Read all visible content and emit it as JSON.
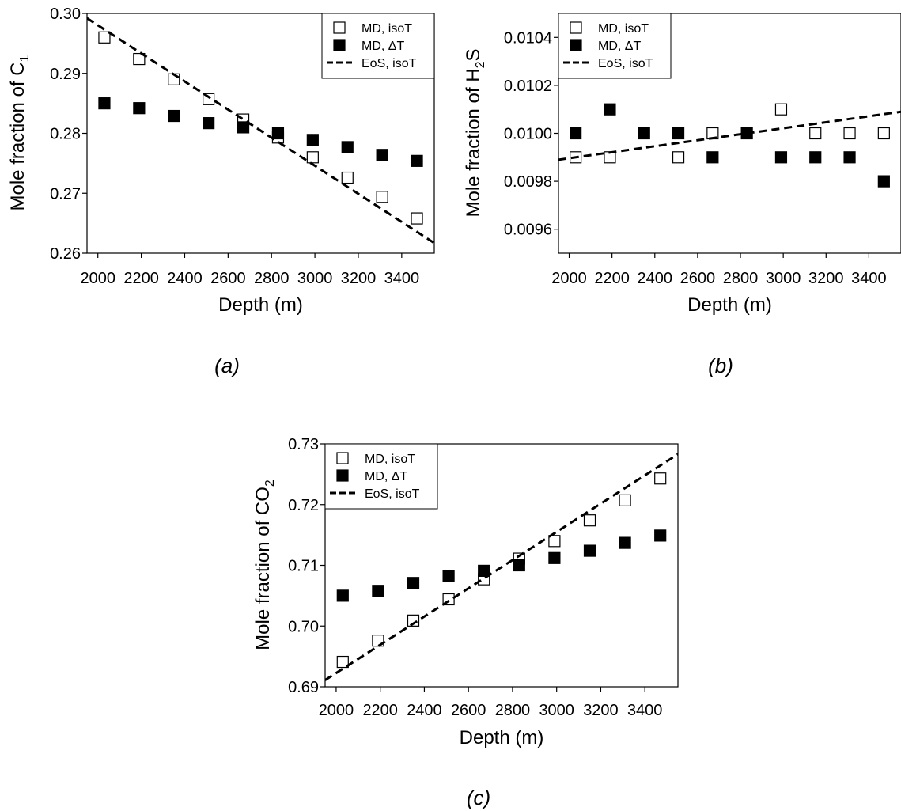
{
  "figure": {
    "captions": [
      "(a)",
      "(b)",
      "(c)"
    ]
  },
  "chart_data": [
    {
      "panel": "a",
      "type": "scatter",
      "xlabel": "Depth (m)",
      "ylabel_main": "Mole fraction of C",
      "ylabel_sub": "1",
      "xlim": [
        1950,
        3550
      ],
      "ylim": [
        0.26,
        0.3
      ],
      "xticks": [
        2000,
        2200,
        2400,
        2600,
        2800,
        3000,
        3200,
        3400
      ],
      "yticks": [
        0.26,
        0.27,
        0.28,
        0.29,
        0.3
      ],
      "ytick_labels": [
        "0.26",
        "0.27",
        "0.28",
        "0.29",
        "0.30"
      ],
      "legend_position": "top-right",
      "series": [
        {
          "name": "MD, isoT",
          "marker": "open-square",
          "x": [
            2030,
            2190,
            2350,
            2510,
            2670,
            2830,
            2990,
            3150,
            3310,
            3470
          ],
          "y": [
            0.296,
            0.2924,
            0.289,
            0.2857,
            0.2823,
            0.2793,
            0.276,
            0.2726,
            0.2694,
            0.2658
          ]
        },
        {
          "name": "MD, ΔT",
          "marker": "filled-square",
          "x": [
            2030,
            2190,
            2350,
            2510,
            2670,
            2830,
            2990,
            3150,
            3310,
            3470
          ],
          "y": [
            0.285,
            0.2842,
            0.2829,
            0.2817,
            0.281,
            0.28,
            0.2789,
            0.2777,
            0.2764,
            0.2754
          ]
        },
        {
          "name": "EoS, isoT",
          "style": "dashed-line",
          "x": [
            1950,
            3550
          ],
          "y": [
            0.2992,
            0.2617
          ]
        }
      ]
    },
    {
      "panel": "b",
      "type": "scatter",
      "xlabel": "Depth (m)",
      "ylabel_main": "Mole fraction of H",
      "ylabel_sub": "2",
      "ylabel_end": "S",
      "xlim": [
        1950,
        3550
      ],
      "ylim": [
        0.0095,
        0.0105
      ],
      "xticks": [
        2000,
        2200,
        2400,
        2600,
        2800,
        3000,
        3200,
        3400
      ],
      "yticks": [
        0.0096,
        0.0098,
        0.01,
        0.0102,
        0.0104
      ],
      "ytick_labels": [
        "0.0096",
        "0.0098",
        "0.0100",
        "0.0102",
        "0.0104"
      ],
      "legend_position": "top-left",
      "series": [
        {
          "name": "MD, isoT",
          "marker": "open-square",
          "x": [
            2030,
            2190,
            2510,
            2670,
            2990,
            3150,
            3310,
            3470
          ],
          "y": [
            0.0099,
            0.0099,
            0.0099,
            0.01,
            0.0101,
            0.01,
            0.01,
            0.01
          ]
        },
        {
          "name": "MD, ΔT",
          "marker": "filled-square",
          "x": [
            2030,
            2190,
            2350,
            2510,
            2670,
            2830,
            2990,
            3150,
            3310,
            3470
          ],
          "y": [
            0.01,
            0.0101,
            0.01,
            0.01,
            0.0099,
            0.01,
            0.0099,
            0.0099,
            0.0099,
            0.0098
          ]
        },
        {
          "name": "EoS, isoT",
          "style": "dashed-line",
          "x": [
            1950,
            3550
          ],
          "y": [
            0.00989,
            0.01009
          ]
        }
      ]
    },
    {
      "panel": "c",
      "type": "scatter",
      "xlabel": "Depth (m)",
      "ylabel_main": "Mole fraction of CO",
      "ylabel_sub": "2",
      "xlim": [
        1950,
        3550
      ],
      "ylim": [
        0.69,
        0.73
      ],
      "xticks": [
        2000,
        2200,
        2400,
        2600,
        2800,
        3000,
        3200,
        3400
      ],
      "yticks": [
        0.69,
        0.7,
        0.71,
        0.72,
        0.73
      ],
      "ytick_labels": [
        "0.69",
        "0.70",
        "0.71",
        "0.72",
        "0.73"
      ],
      "legend_position": "top-left",
      "series": [
        {
          "name": "MD, isoT",
          "marker": "open-square",
          "x": [
            2030,
            2190,
            2350,
            2510,
            2670,
            2830,
            2990,
            3150,
            3310,
            3470
          ],
          "y": [
            0.6941,
            0.6976,
            0.7009,
            0.7044,
            0.7077,
            0.7111,
            0.714,
            0.7174,
            0.7207,
            0.7243
          ]
        },
        {
          "name": "MD, ΔT",
          "marker": "filled-square",
          "x": [
            2030,
            2190,
            2350,
            2510,
            2670,
            2830,
            2990,
            3150,
            3310,
            3470
          ],
          "y": [
            0.705,
            0.7058,
            0.7071,
            0.7082,
            0.7091,
            0.71,
            0.7112,
            0.7124,
            0.7137,
            0.7149
          ]
        },
        {
          "name": "EoS, isoT",
          "style": "dashed-line",
          "x": [
            1950,
            3550
          ],
          "y": [
            0.6911,
            0.7283
          ]
        }
      ]
    }
  ]
}
